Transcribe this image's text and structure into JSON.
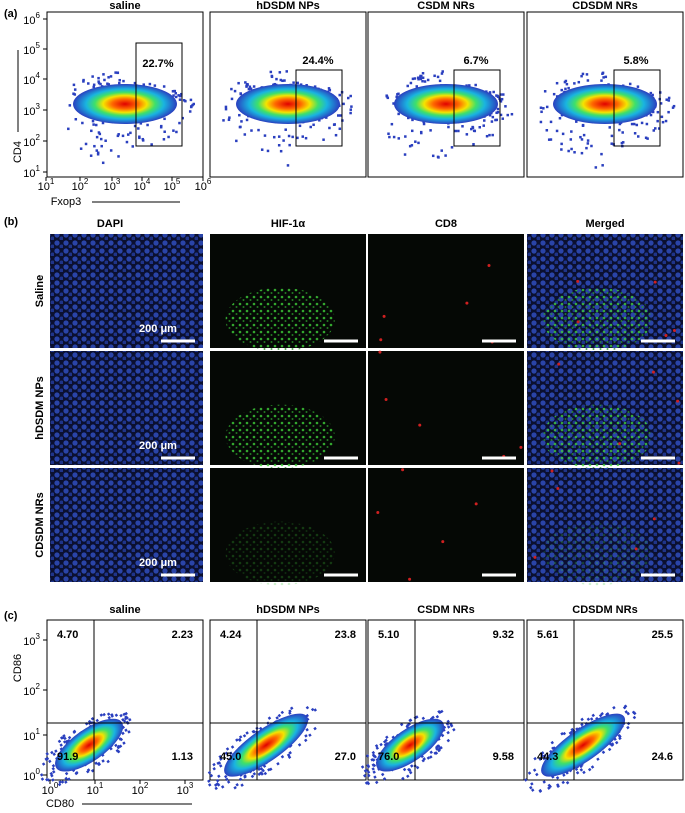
{
  "panel_a": {
    "label": "(a)",
    "x_axis": "Fxop3",
    "y_axis": "CD4",
    "tick_base": "10",
    "y_exponents": [
      "1",
      "2",
      "3",
      "4",
      "5",
      "6"
    ],
    "x_exponents": [
      "1",
      "2",
      "3",
      "4",
      "5",
      "6"
    ],
    "plots": [
      {
        "title": "saline",
        "gate": "22.7%"
      },
      {
        "title": "hDSDM NPs",
        "gate": "24.4%"
      },
      {
        "title": "CSDM NRs",
        "gate": "6.7%"
      },
      {
        "title": "CDSDM NRs",
        "gate": "5.8%"
      }
    ]
  },
  "panel_b": {
    "label": "(b)",
    "columns": [
      "DAPI",
      "HIF-1α",
      "CD8",
      "Merged"
    ],
    "rows": [
      "Saline",
      "hDSDM NPs",
      "CDSDM NRs"
    ],
    "scale_bar": "200 μm"
  },
  "panel_c": {
    "label": "(c)",
    "x_axis": "CD80",
    "y_axis": "CD86",
    "tick_base": "10",
    "y_exponents": [
      "0",
      "1",
      "2",
      "3"
    ],
    "x_exponents": [
      "0",
      "1",
      "2",
      "3"
    ],
    "plots": [
      {
        "title": "saline",
        "quadrants": [
          "4.70",
          "2.23",
          "91.9",
          "1.13"
        ]
      },
      {
        "title": "hDSDM NPs",
        "quadrants": [
          "4.24",
          "23.8",
          "45.0",
          "27.0"
        ]
      },
      {
        "title": "CSDM NRs",
        "quadrants": [
          "5.10",
          "9.32",
          "76.0",
          "9.58"
        ]
      },
      {
        "title": "CDSDM NRs",
        "quadrants": [
          "5.61",
          "25.5",
          "44.3",
          "24.6"
        ]
      }
    ]
  }
}
